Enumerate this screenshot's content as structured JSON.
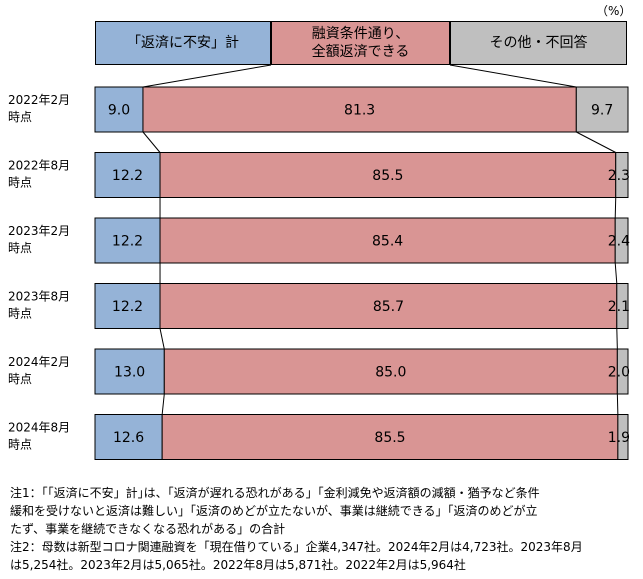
{
  "unit_label": "（%）",
  "colors": {
    "anxiety": "#95b3d7",
    "repay": "#d99594",
    "other": "#bfbfbf"
  },
  "chart_data": {
    "type": "bar",
    "orientation": "horizontal",
    "stacked": true,
    "percent": true,
    "categories": [
      [
        "2022年2月",
        "時点"
      ],
      [
        "2022年8月",
        "時点"
      ],
      [
        "2023年2月",
        "時点"
      ],
      [
        "2023年8月",
        "時点"
      ],
      [
        "2024年2月",
        "時点"
      ],
      [
        "2024年8月",
        "時点"
      ]
    ],
    "series": [
      {
        "name": "「返済に不安」計",
        "values": [
          9.0,
          12.2,
          12.2,
          12.2,
          13.0,
          12.6
        ]
      },
      {
        "name": "融資条件通り、全額返済できる",
        "values": [
          81.3,
          85.5,
          85.4,
          85.7,
          85.0,
          85.5
        ]
      },
      {
        "name": "その他・不回答",
        "values": [
          9.7,
          2.3,
          2.4,
          2.1,
          2.0,
          1.9
        ]
      }
    ],
    "legend": [
      "「返済に不安」計",
      [
        "融資条件通り、",
        "全額返済できる"
      ],
      "その他・不回答"
    ],
    "legend_placement": "top"
  },
  "notes": [
    "注1：｢「返済に不安」計｣は、「返済が遅れる恐れがある」「金利減免や返済額の減額・猶予など条件",
    "緩和を受けないと返済は難しい」「返済のめどが立たないが、事業は継続できる」「返済のめどが立",
    "たず、事業を継続できなくなる恐れがある」の合計",
    "注2：母数は新型コロナ関連融資を「現在借りている」企業4,347社。2024年2月は4,723社。2023年8月",
    "は5,254社。2023年2月は5,065社。2022年8月は5,871社。2022年2月は5,964社"
  ]
}
